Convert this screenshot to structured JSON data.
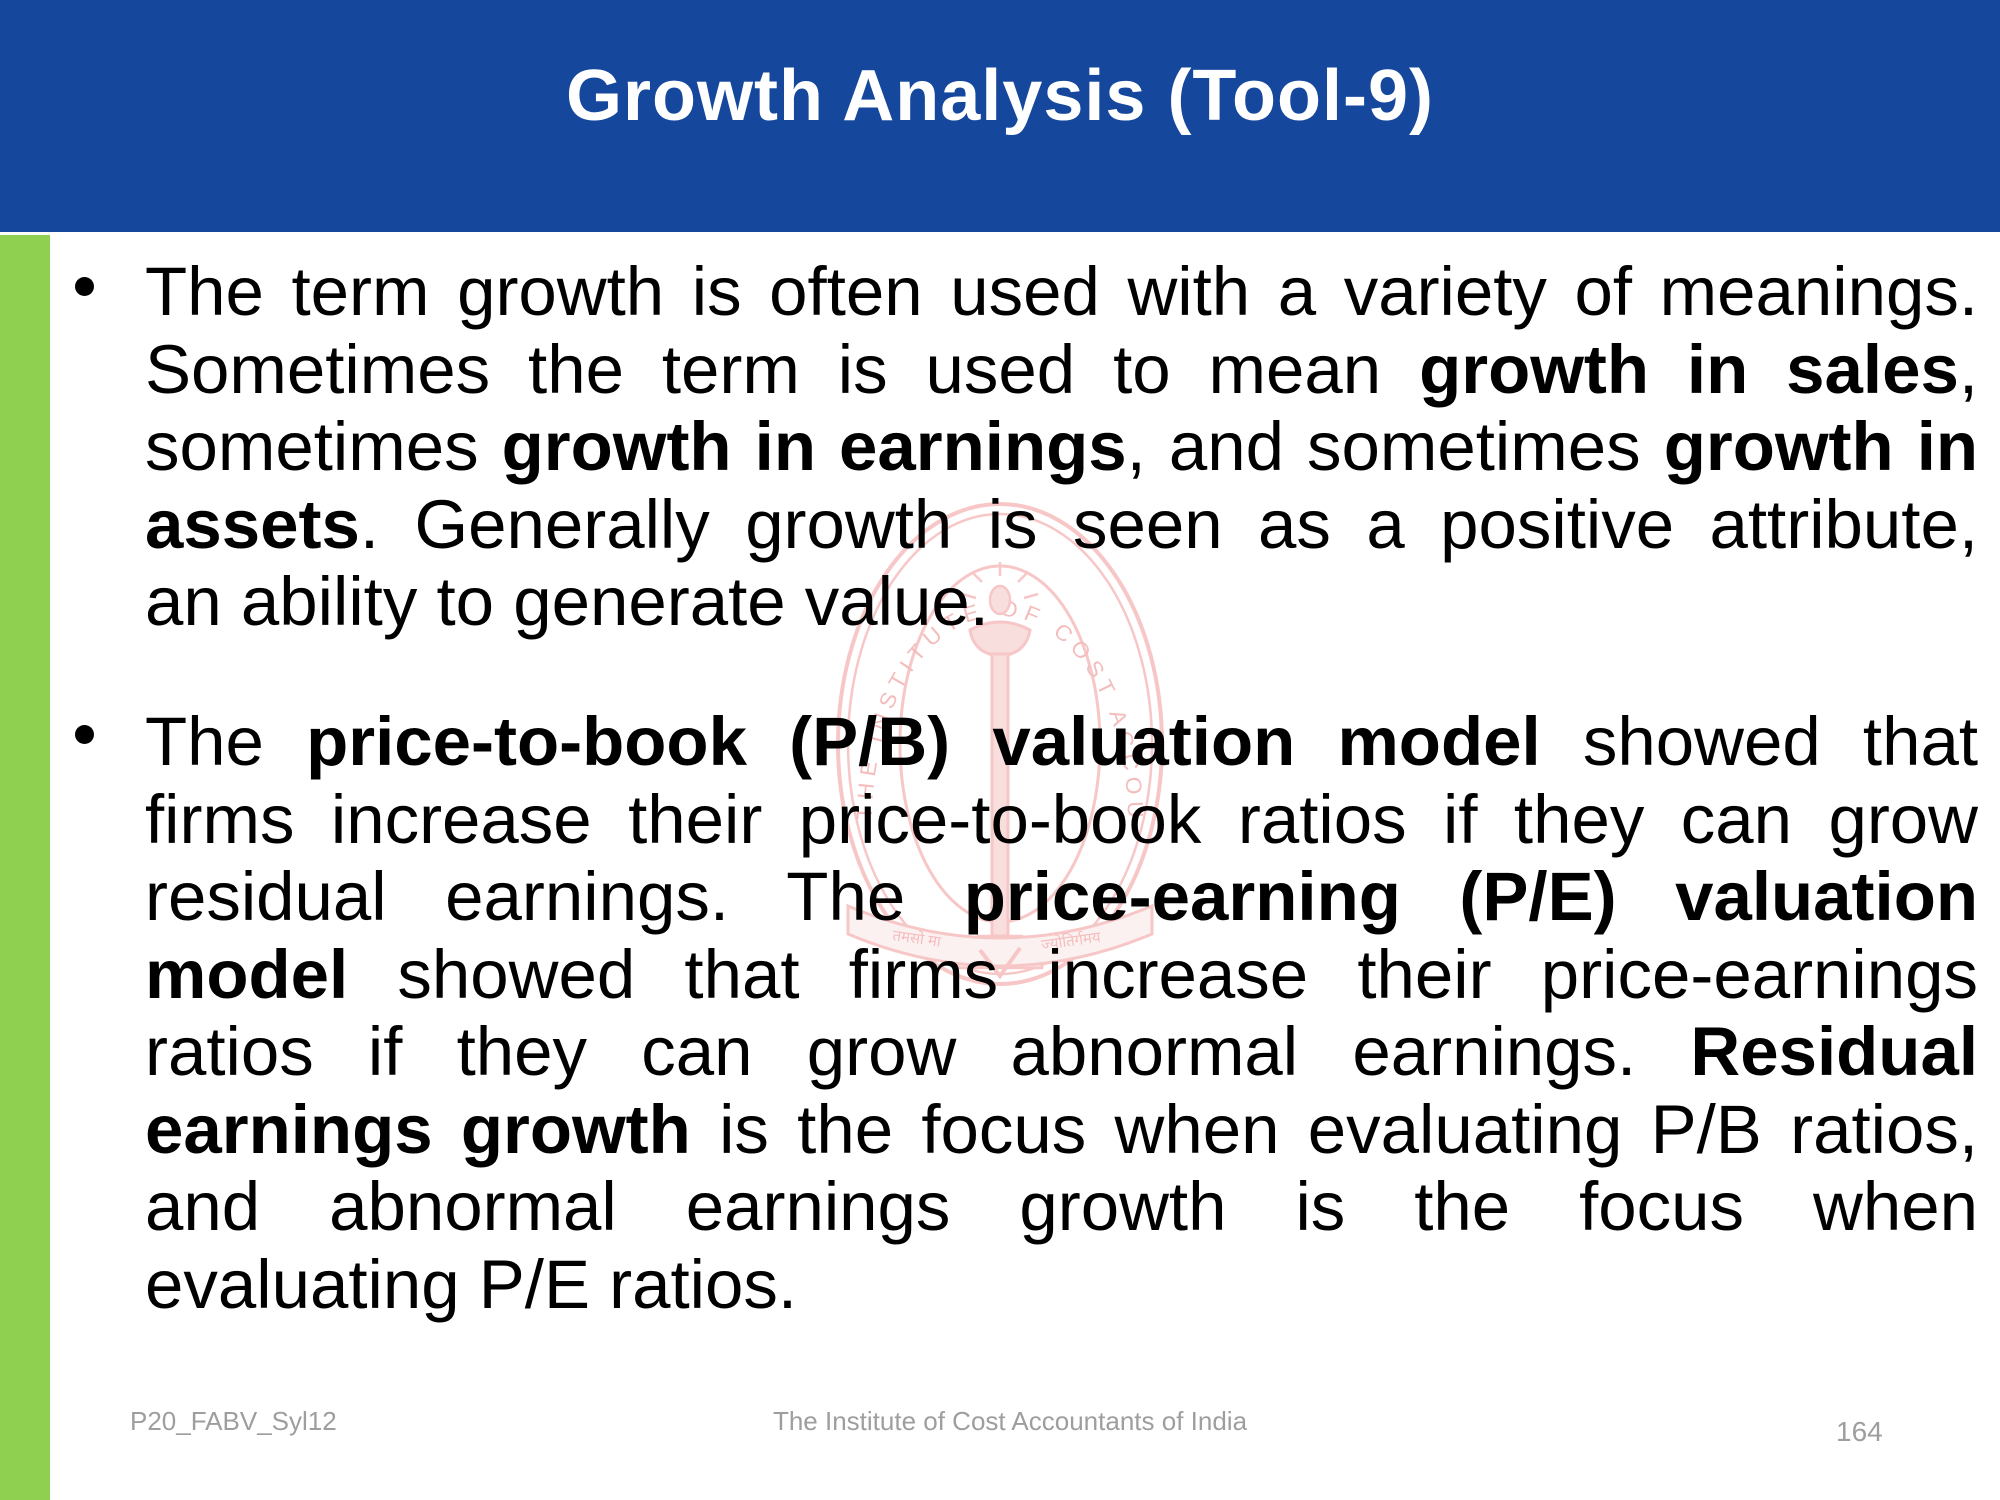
{
  "slide": {
    "title": "Growth Analysis (Tool-9)",
    "bullet_char": "•"
  },
  "colors": {
    "header_blue": "#15479C",
    "accent_green": "#90D050",
    "watermark_pink": "#F2A2A2",
    "footer_gray": "#9E9E9E",
    "body_text": "#000000",
    "title_text": "#FFFFFF"
  },
  "paragraphs": [
    {
      "lines": [
        [
          {
            "t": "The term growth is often used with a variety of meanings."
          }
        ],
        [
          {
            "t": "Sometimes the term is used to mean "
          },
          {
            "t": "growth in sales",
            "b": true
          },
          {
            "t": ","
          }
        ],
        [
          {
            "t": "sometimes "
          },
          {
            "t": "growth in earnings",
            "b": true
          },
          {
            "t": ", and sometimes "
          },
          {
            "t": "growth in",
            "b": true
          }
        ],
        [
          {
            "t": "assets",
            "b": true
          },
          {
            "t": ". Generally growth is seen as a positive attribute,"
          }
        ],
        [
          {
            "t": "an ability to generate value."
          }
        ]
      ]
    },
    {
      "lines": [
        [
          {
            "t": "The "
          },
          {
            "t": "price-to-book (P/B) valuation model",
            "b": true
          },
          {
            "t": " showed that"
          }
        ],
        [
          {
            "t": "firms increase their price-to-book ratios if they can grow"
          }
        ],
        [
          {
            "t": "residual earnings. The "
          },
          {
            "t": "price-earning (P/E) valuation",
            "b": true
          }
        ],
        [
          {
            "t": "model",
            "b": true
          },
          {
            "t": " showed that firms increase their price-earnings"
          }
        ],
        [
          {
            "t": "ratios if they can grow abnormal earnings. "
          },
          {
            "t": "Residual",
            "b": true
          }
        ],
        [
          {
            "t": "earnings growth",
            "b": true
          },
          {
            "t": " is the focus when evaluating P/B ratios,"
          }
        ],
        [
          {
            "t": "and abnormal earnings growth is the focus when"
          }
        ],
        [
          {
            "t": "evaluating P/E ratios."
          }
        ]
      ]
    }
  ],
  "watermark": {
    "ring_text": "THE INSTITUTE OF COST ACCOUNTANTS OF INDIA",
    "motto_left": "तमसो मा",
    "motto_right": "ज्योतिर्गमय"
  },
  "footer": {
    "left": "P20_FABV_Syl12",
    "center": "The Institute of Cost Accountants of India",
    "page_number": "164"
  }
}
